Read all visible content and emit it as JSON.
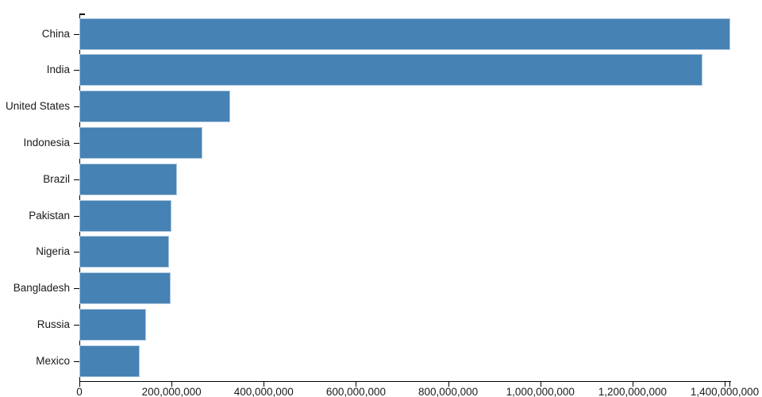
{
  "chart_data": {
    "type": "bar",
    "orientation": "horizontal",
    "title": "",
    "xlabel": "",
    "ylabel": "",
    "categories": [
      "China",
      "India",
      "United States",
      "Indonesia",
      "Brazil",
      "Pakistan",
      "Nigeria",
      "Bangladesh",
      "Russia",
      "Mexico"
    ],
    "values": [
      1412000000,
      1351000000,
      327000000,
      267000000,
      211000000,
      200000000,
      195000000,
      198000000,
      144000000,
      131000000
    ],
    "xlim": [
      0,
      1412000000
    ],
    "x_ticks": [
      0,
      200000000,
      400000000,
      600000000,
      800000000,
      1000000000,
      1200000000,
      1400000000
    ],
    "x_tick_labels": [
      "0",
      "200,000,000",
      "400,000,000",
      "600,000,000",
      "800,000,000",
      "1,000,000,000",
      "1,200,000,000",
      "1,400,000,000"
    ],
    "grid": false,
    "legend": false,
    "bar_color": "#4682b4",
    "bar_border_color": "#b0c9e0",
    "axis_color": "#000000",
    "label_color": "#1a1a1a"
  }
}
